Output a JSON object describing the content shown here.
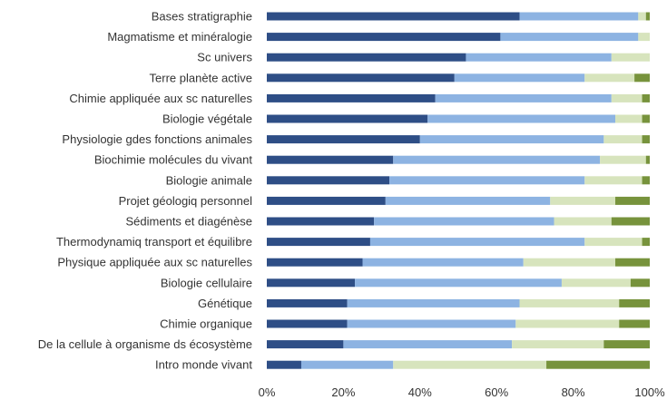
{
  "chart_data": {
    "type": "bar",
    "orientation": "horizontal",
    "stacked": "percent",
    "title": "",
    "xlabel": "",
    "ylabel": "",
    "xlim": [
      0,
      100
    ],
    "x_ticks": [
      "0%",
      "20%",
      "40%",
      "60%",
      "80%",
      "100%"
    ],
    "grid": false,
    "legend": "none",
    "categories": [
      "Bases stratigraphie",
      "Magmatisme et minéralogie",
      "Sc univers",
      "Terre planète active",
      "Chimie appliquée aux sc naturelles",
      "Biologie végétale",
      "Physiologie gdes fonctions animales",
      "Biochimie molécules du vivant",
      "Biologie animale",
      "Projet géologiq personnel",
      "Sédiments et diagénèse",
      "Thermodynamiq transport et équilibre",
      "Physique appliquée aux sc naturelles",
      "Biologie cellulaire",
      "Génétique",
      "Chimie organique",
      "De la cellule à organisme ds écosystème",
      "Intro monde vivant"
    ],
    "series": [
      {
        "color": "#2e4e86",
        "values": [
          66,
          61,
          52,
          49,
          44,
          42,
          40,
          33,
          32,
          31,
          28,
          27,
          25,
          23,
          21,
          21,
          20,
          9
        ]
      },
      {
        "color": "#8db3e2",
        "values": [
          31,
          36,
          38,
          34,
          46,
          49,
          48,
          54,
          51,
          43,
          47,
          56,
          42,
          54,
          45,
          44,
          44,
          24
        ]
      },
      {
        "color": "#d7e4bd",
        "values": [
          2,
          3,
          10,
          13,
          8,
          7,
          10,
          12,
          15,
          17,
          15,
          15,
          24,
          18,
          26,
          27,
          24,
          40
        ]
      },
      {
        "color": "#77933c",
        "values": [
          1,
          0,
          0,
          4,
          2,
          2,
          2,
          1,
          2,
          9,
          10,
          2,
          9,
          5,
          8,
          8,
          12,
          27
        ]
      }
    ]
  }
}
